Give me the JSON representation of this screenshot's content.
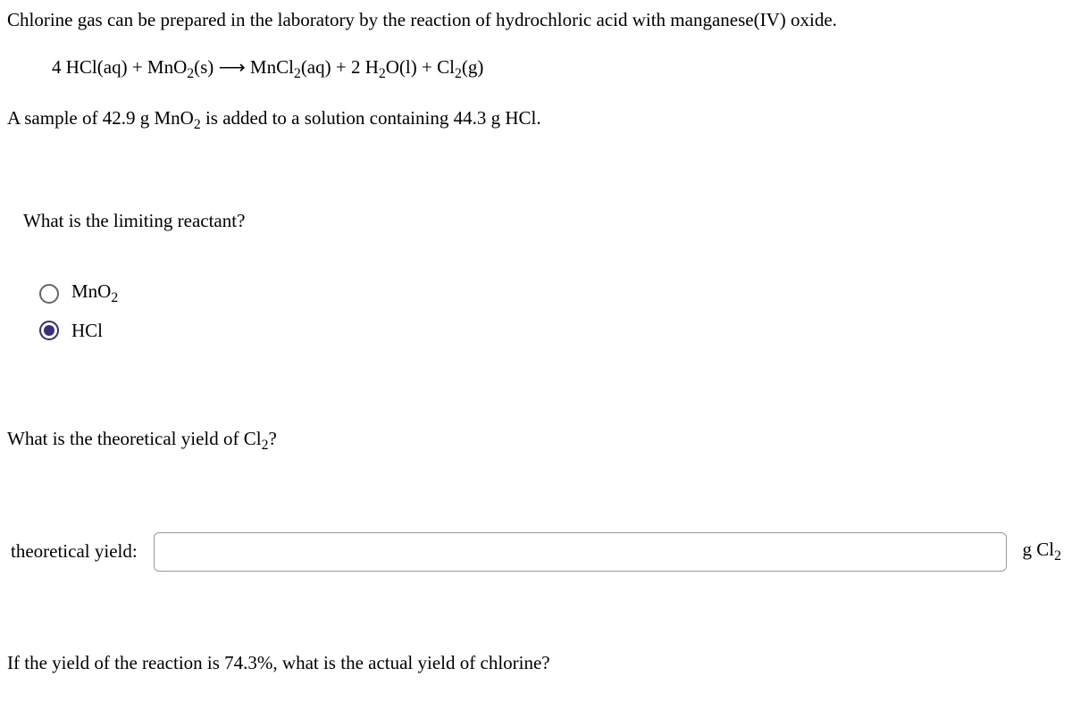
{
  "intro": "Chlorine gas can be prepared in the laboratory by the reaction of hydrochloric acid with manganese(IV) oxide.",
  "equation": {
    "lhs_coef1": "4",
    "lhs_species1": "HCl(aq)",
    "plus1": " + ",
    "lhs_species2_a": "MnO",
    "lhs_species2_sub": "2",
    "lhs_species2_b": "(s)",
    "arrow": " ⟶ ",
    "rhs_species1_a": "MnCl",
    "rhs_species1_sub": "2",
    "rhs_species1_b": "(aq)",
    "plus2": " + ",
    "rhs_coef2": "2",
    "rhs_species2_a": " H",
    "rhs_species2_sub": "2",
    "rhs_species2_b": "O(l)",
    "plus3": " + ",
    "rhs_species3_a": "Cl",
    "rhs_species3_sub": "2",
    "rhs_species3_b": "(g)"
  },
  "sample_a": "A sample of 42.9 g MnO",
  "sample_sub": "2",
  "sample_b": " is added to a solution containing 44.3 g HCl.",
  "question1": "What is the limiting reactant?",
  "option1_a": "MnO",
  "option1_sub": "2",
  "option2": "HCl",
  "selected_option": 2,
  "question2_a": "What is the theoretical yield of Cl",
  "question2_sub": "2",
  "question2_b": "?",
  "yield_label": "theoretical yield:",
  "yield_value": "",
  "yield_unit_a": "g Cl",
  "yield_unit_sub": "2",
  "question3": "If the yield of the reaction is 74.3%, what is the actual yield of chlorine?"
}
